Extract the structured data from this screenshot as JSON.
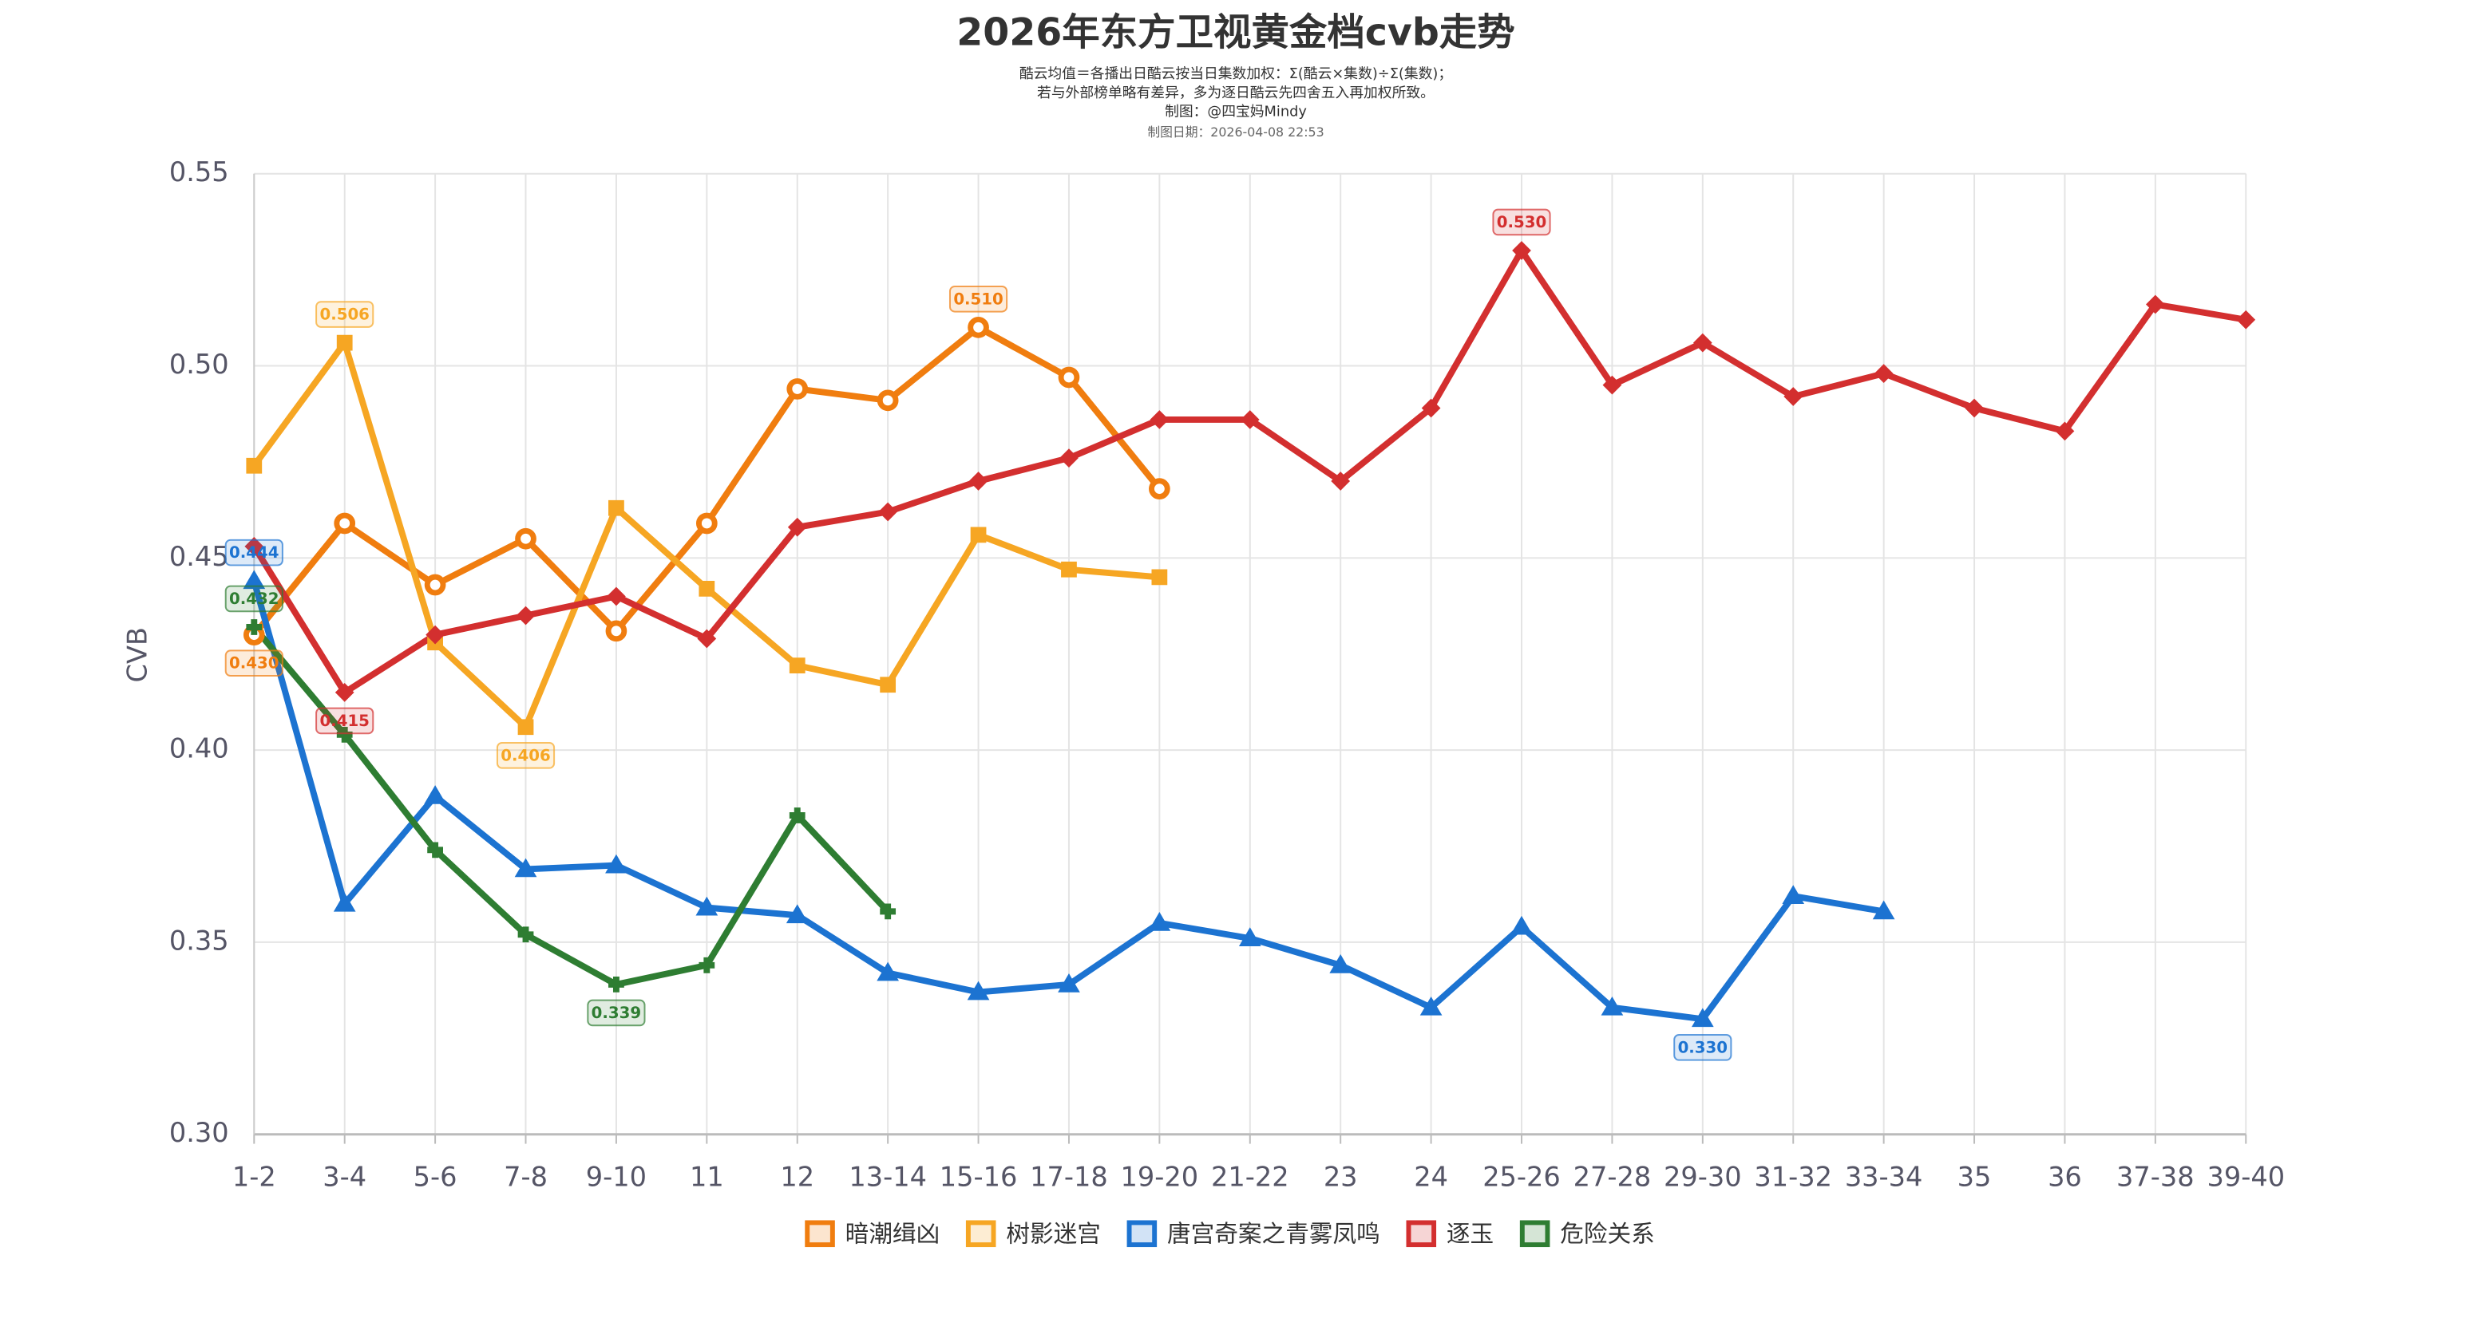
{
  "chart_data": {
    "type": "line",
    "title": "2026年东方卫视黄金档cvb走势",
    "subtitle": [
      "酷云均值＝各播出日酷云按当日集数加权：Σ(酷云×集数)÷Σ(集数)；",
      "若与外部榜单略有差异，多为逐日酷云先四舍五入再加权所致。",
      "制图：@四宝妈Mindy",
      "制图日期：2026-04-08 22:53"
    ],
    "y_label": "CVB",
    "categories": [
      "1-2",
      "3-4",
      "5-6",
      "7-8",
      "9-10",
      "11",
      "12",
      "13-14",
      "15-16",
      "17-18",
      "19-20",
      "21-22",
      "23",
      "24",
      "25-26",
      "27-28",
      "29-30",
      "31-32",
      "33-34",
      "35",
      "36",
      "37-38",
      "39-40"
    ],
    "ylim": [
      0.3,
      0.55
    ],
    "yticks": [
      {
        "value": 0.3,
        "label": "0.30"
      },
      0.35,
      {
        "value": 0.4,
        "label": "0.40"
      },
      0.45,
      {
        "value": 0.5,
        "label": "0.50"
      },
      0.55
    ],
    "grid": true,
    "legend": "bottom",
    "series": [
      {
        "name": "暗潮缉凶",
        "color": "#f07d0f",
        "marker": "circle",
        "values": [
          0.43,
          0.459,
          0.443,
          0.455,
          0.431,
          0.459,
          0.494,
          0.491,
          0.51,
          0.497,
          0.468,
          null,
          null,
          null,
          null,
          null,
          null,
          null,
          null,
          null,
          null,
          null,
          null
        ],
        "value_labels": [
          "0.430",
          null,
          null,
          null,
          null,
          null,
          null,
          null,
          "0.510",
          null,
          null,
          null,
          null,
          null,
          null,
          null,
          null,
          null,
          null,
          null,
          null,
          null,
          null
        ]
      },
      {
        "name": "树影迷宫",
        "color": "#f6a623",
        "marker": "square",
        "values": [
          0.474,
          0.506,
          0.428,
          0.406,
          0.463,
          0.442,
          0.422,
          0.417,
          0.456,
          0.447,
          0.445,
          null,
          null,
          null,
          null,
          null,
          null,
          null,
          null,
          null,
          null,
          null,
          null
        ],
        "value_labels": [
          null,
          "0.506",
          null,
          "0.406",
          null,
          null,
          null,
          null,
          null,
          null,
          null,
          null,
          null,
          null,
          null,
          null,
          null,
          null,
          null,
          null,
          null,
          null,
          null
        ]
      },
      {
        "name": "唐宫奇案之青雾凤鸣",
        "color": "#1c73d1",
        "marker": "triangle",
        "values": [
          0.444,
          0.36,
          0.388,
          0.369,
          0.37,
          0.359,
          0.357,
          0.342,
          0.337,
          0.339,
          0.355,
          0.351,
          0.344,
          0.333,
          0.354,
          0.333,
          0.33,
          0.362,
          0.358,
          null,
          null,
          null,
          null
        ],
        "value_labels": [
          "0.444",
          null,
          null,
          null,
          null,
          null,
          null,
          null,
          null,
          null,
          null,
          null,
          null,
          null,
          null,
          null,
          "0.330",
          null,
          null,
          null,
          null,
          null,
          null
        ]
      },
      {
        "name": "逐玉",
        "color": "#d32f2f",
        "marker": "diamond",
        "values": [
          0.453,
          0.415,
          0.43,
          0.435,
          0.44,
          0.429,
          0.458,
          0.462,
          0.47,
          0.476,
          0.486,
          0.486,
          0.47,
          0.489,
          0.53,
          0.495,
          0.506,
          0.492,
          0.498,
          0.489,
          0.483,
          0.516,
          0.512
        ],
        "value_labels": [
          null,
          "0.415",
          null,
          null,
          null,
          null,
          null,
          null,
          null,
          null,
          null,
          null,
          null,
          null,
          "0.530",
          null,
          null,
          null,
          null,
          null,
          null,
          null,
          null
        ]
      },
      {
        "name": "危险关系",
        "color": "#2e7d32",
        "marker": "plus",
        "values": [
          0.432,
          0.404,
          0.374,
          0.352,
          0.339,
          0.344,
          0.383,
          0.358,
          null,
          null,
          null,
          null,
          null,
          null,
          null,
          null,
          null,
          null,
          null,
          null,
          null,
          null,
          null
        ],
        "value_labels": [
          "0.432",
          null,
          null,
          null,
          "0.339",
          null,
          null,
          null,
          null,
          null,
          null,
          null,
          null,
          null,
          null,
          null,
          null,
          null,
          null,
          null,
          null,
          null,
          null
        ]
      }
    ]
  }
}
